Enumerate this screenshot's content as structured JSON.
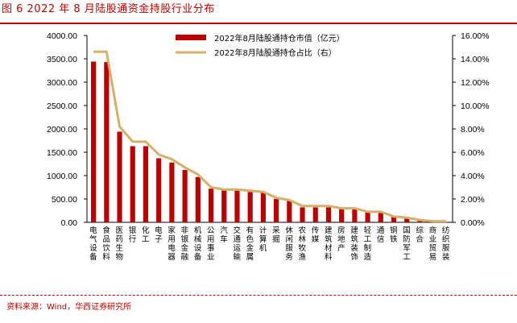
{
  "figure": {
    "title": "图 6   2022 年 8 月陆股通资金持股行业分布",
    "source": "资料来源：Wind，华西证券研究所"
  },
  "colors": {
    "bar": "#c00000",
    "line": "#d4b06a",
    "accent": "#c00000"
  },
  "chart_data": {
    "type": "bar",
    "categories": [
      "电气设备",
      "食品饮料",
      "医药生物",
      "银行",
      "化工",
      "电子",
      "家用电器",
      "非银金融",
      "机械设备",
      "公用事业",
      "汽车",
      "交通运输",
      "有色金属",
      "计算机",
      "采掘",
      "休闲服务",
      "农林牧渔",
      "传媒",
      "建筑材料",
      "房地产",
      "建筑装饰",
      "轻工制造",
      "通信",
      "钢铁",
      "国防军工",
      "综合",
      "商业贸易",
      "纺织服装"
    ],
    "series": [
      {
        "name": "2022年8月陆股通持仓市值（亿元）",
        "type": "bar",
        "axis": "left",
        "values": [
          3440,
          3430,
          1940,
          1630,
          1630,
          1370,
          1280,
          1120,
          970,
          720,
          680,
          680,
          650,
          640,
          500,
          460,
          320,
          320,
          320,
          290,
          280,
          220,
          200,
          130,
          90,
          40,
          30,
          10
        ]
      },
      {
        "name": "2022年8月陆股通持仓占比（右）",
        "type": "line",
        "axis": "right",
        "values": [
          14.6,
          14.6,
          8.2,
          6.9,
          6.9,
          5.8,
          5.4,
          4.7,
          4.1,
          3.0,
          2.8,
          2.8,
          2.7,
          2.6,
          2.1,
          1.9,
          1.4,
          1.4,
          1.4,
          1.2,
          1.2,
          0.9,
          0.9,
          0.5,
          0.4,
          0.2,
          0.1,
          0.1
        ]
      }
    ],
    "left_axis": {
      "ylim": [
        0,
        4000
      ],
      "ticks": [
        "4000.00",
        "3500.00",
        "3000.00",
        "2500.00",
        "2000.00",
        "1500.00",
        "1000.00",
        "500.00",
        "0.00"
      ]
    },
    "right_axis": {
      "ylim": [
        0,
        16
      ],
      "ticks": [
        "16.00%",
        "14.00%",
        "12.00%",
        "10.00%",
        "8.00%",
        "6.00%",
        "4.00%",
        "2.00%",
        "0.00%"
      ]
    },
    "legend_position": "top-center"
  }
}
